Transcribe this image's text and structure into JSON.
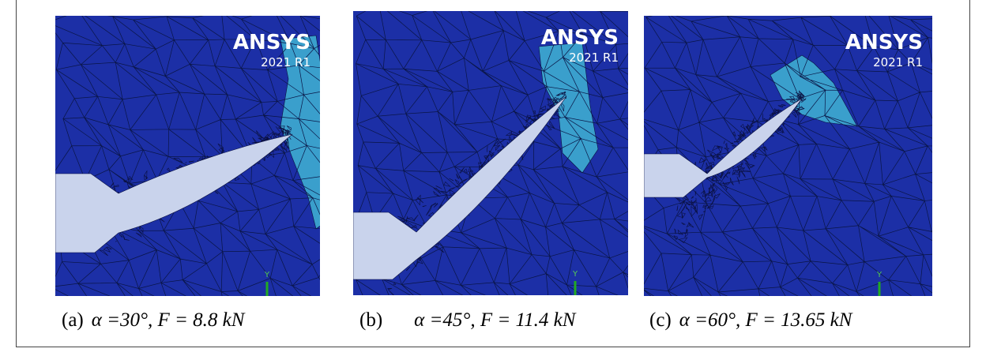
{
  "figure": {
    "panels": [
      {
        "logo": "ANSYS",
        "version": "2021 R1",
        "axis": "Y",
        "label": "(a)",
        "caption": "α =30°, F = 8.8 kN"
      },
      {
        "logo": "ANSYS",
        "version": "2021 R1",
        "axis": "Y",
        "label": "(b)",
        "caption": "α =45°, F = 11.4 kN"
      },
      {
        "logo": "ANSYS",
        "version": "2021 R1",
        "axis": "Y",
        "label": "(c)",
        "caption": "α =60°, F = 13.65 kN"
      }
    ]
  }
}
